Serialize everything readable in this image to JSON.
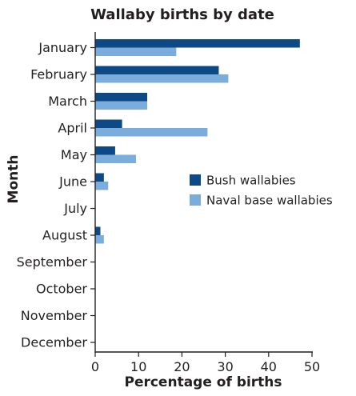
{
  "chart_data": {
    "type": "bar",
    "orientation": "horizontal",
    "title": "Wallaby births by date",
    "xlabel": "Percentage of births",
    "ylabel": "Month",
    "categories": [
      "January",
      "February",
      "March",
      "April",
      "May",
      "June",
      "July",
      "August",
      "September",
      "October",
      "November",
      "December"
    ],
    "series": [
      {
        "name": "Bush wallabies",
        "color": "#0d4a85",
        "values": [
          47.2,
          28.5,
          12.0,
          6.2,
          4.6,
          2.0,
          0,
          1.2,
          0,
          0,
          0,
          0
        ]
      },
      {
        "name": "Naval base wallabies",
        "color": "#7aaddb",
        "values": [
          18.7,
          30.7,
          12.0,
          25.9,
          9.4,
          3.0,
          0,
          2.0,
          0,
          0,
          0,
          0
        ]
      }
    ],
    "xlim": [
      0,
      50
    ],
    "xticks": [
      "0",
      "10",
      "20",
      "30",
      "40",
      "50"
    ],
    "grid": false,
    "legend_position": "right-middle"
  }
}
